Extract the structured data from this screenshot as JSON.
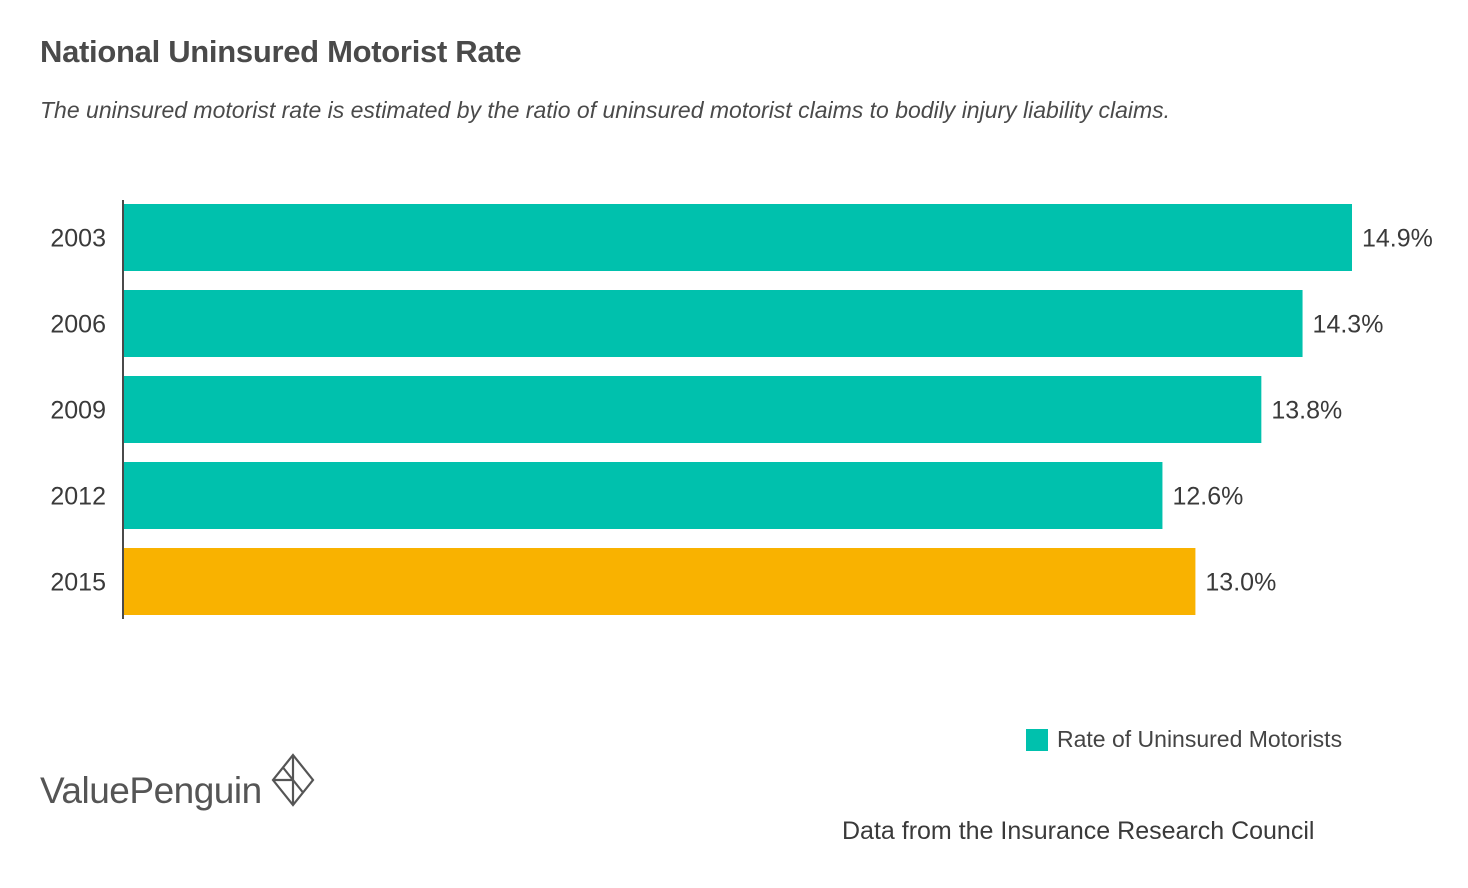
{
  "title": "National Uninsured Motorist Rate",
  "subtitle": "The uninsured motorist rate is estimated by the ratio of uninsured motorist claims to bodily injury liability claims.",
  "legend": {
    "label": "Rate of Uninsured Motorists",
    "color": "#00c1ad"
  },
  "brand": {
    "name": "ValuePenguin",
    "mark_icon": "diamond-lines-icon"
  },
  "source": "Data from the Insurance Research Council",
  "colors": {
    "primary": "#00c1ad",
    "highlight": "#f9b200",
    "axis": "#4a4a4a"
  },
  "chart_data": {
    "type": "bar",
    "orientation": "horizontal",
    "categories": [
      "2003",
      "2006",
      "2009",
      "2012",
      "2015"
    ],
    "values": [
      14.9,
      14.3,
      13.8,
      12.6,
      13.0
    ],
    "labels": [
      "14.9%",
      "14.3%",
      "13.8%",
      "12.6%",
      "13.0%"
    ],
    "highlight_category": "2015",
    "unit": "%",
    "xlim": [
      0,
      14.9
    ],
    "grid": false,
    "legend_position": "bottom-right"
  }
}
